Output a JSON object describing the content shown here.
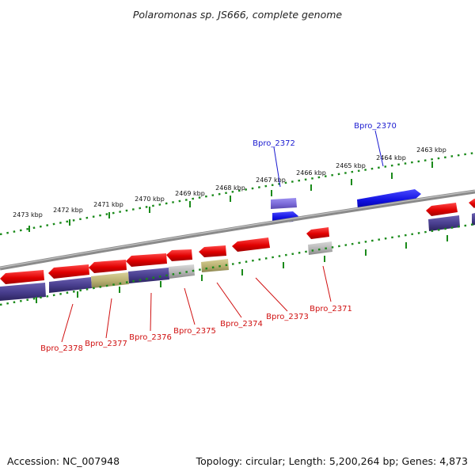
{
  "title": "Polaromonas sp. JS666, complete genome",
  "footer": {
    "accession": "Accession: NC_007948",
    "summary": "Topology: circular; Length: 5,200,264 bp; Genes: 4,873"
  },
  "ticks": [
    "2473 kbp",
    "2472 kbp",
    "2471 kbp",
    "2470 kbp",
    "2469 kbp",
    "2468 kbp",
    "2467 kbp",
    "2466 kbp",
    "2465 kbp",
    "2464 kbp",
    "2463 kbp"
  ],
  "gene_labels_forward": [
    "Bpro_2372",
    "Bpro_2370"
  ],
  "gene_labels_reverse": [
    "Bpro_2378",
    "Bpro_2377",
    "Bpro_2376",
    "Bpro_2375",
    "Bpro_2374",
    "Bpro_2373",
    "Bpro_2371"
  ],
  "colors": {
    "backbone": "#8a8a8a",
    "tick_dots": "#1a8a1a",
    "forward_gene": "#1515e0",
    "forward_cog": "#7a6ad8",
    "reverse_gene": "#e01010",
    "cog_blue": "#463c8c",
    "cog_olive": "#b8b070",
    "cog_grey": "#b4b4b4",
    "label_forward": "#1a1ad0",
    "label_reverse": "#d01010"
  }
}
